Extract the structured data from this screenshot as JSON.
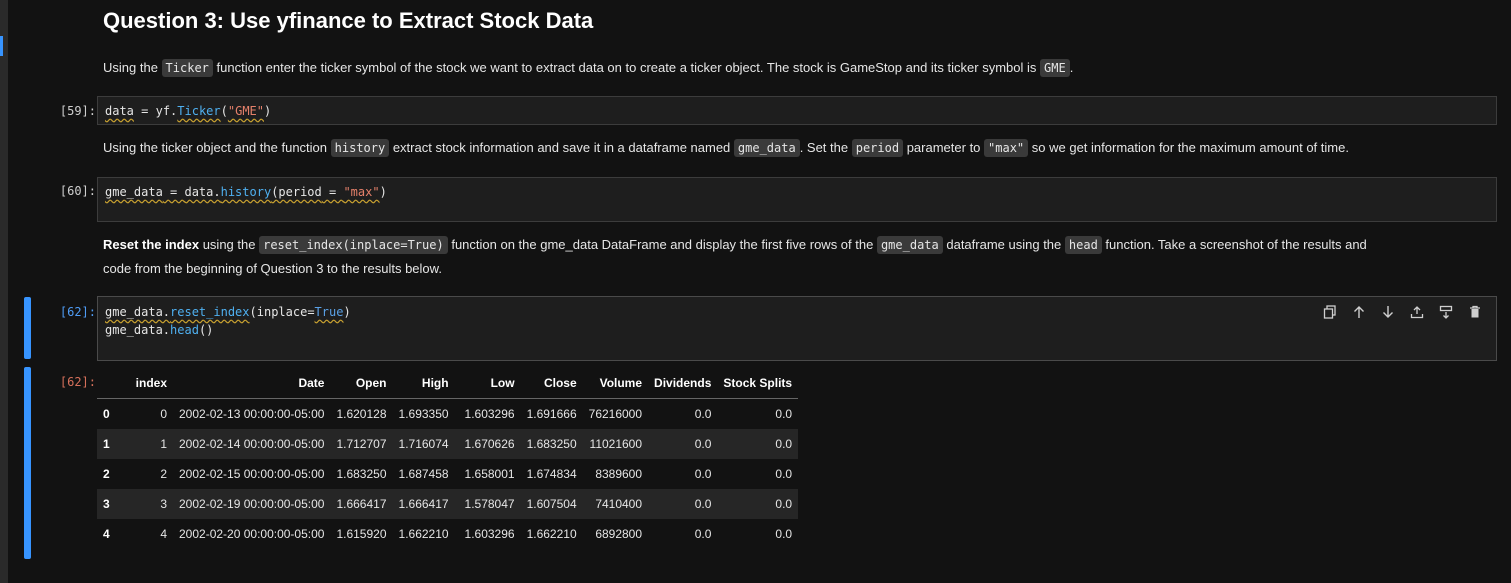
{
  "heading": "Question 3: Use yfinance to Extract Stock Data",
  "md1": {
    "t1": "Using the ",
    "c1": "Ticker",
    "t2": " function enter the ticker symbol of the stock we want to extract data on to create a ticker object. The stock is GameStop and its ticker symbol is ",
    "c2": "GME",
    "t3": "."
  },
  "cell59": {
    "prompt": "[59]:",
    "line1": {
      "a": "data",
      "b": " = ",
      "c": "yf.",
      "d": "Ticker",
      "e": "(",
      "f": "\"GME\"",
      "g": ")"
    }
  },
  "md2": {
    "t1": "Using the ticker object and the function ",
    "c1": "history",
    "t2": " extract stock information and save it in a dataframe named ",
    "c2": "gme_data",
    "t3": ". Set the ",
    "c3": "period",
    "t4": " parameter to ",
    "c4": "\"max\"",
    "t5": " so we get information for the maximum amount of time."
  },
  "cell60": {
    "prompt": "[60]:",
    "line1": {
      "a": "gme_data",
      "b": " = ",
      "c": "data.",
      "d": "history",
      "e": "(period",
      "f": " = ",
      "g": "\"max\"",
      "h": ")"
    }
  },
  "md3": {
    "b1": "Reset the index",
    "t1": " using the ",
    "c1": "reset_index(inplace=True)",
    "t2": " function on the gme_data DataFrame and display the first five rows of the ",
    "c2": "gme_data",
    "t3": " dataframe using the ",
    "c3": "head",
    "t4": " function. Take a screenshot of the results and",
    "t5": "code from the beginning of Question 3 to the results below."
  },
  "cell62": {
    "prompt": "[62]:",
    "line1": {
      "a": "gme_data.",
      "b": "reset_index",
      "c": "(inplace",
      "d": "=",
      "e": "True",
      "f": ")"
    },
    "line2": {
      "a": "gme_data.",
      "b": "head",
      "c": "()"
    },
    "toolbar": [
      "copy-icon",
      "move-up-icon",
      "move-down-icon",
      "insert-above-icon",
      "insert-below-icon",
      "delete-icon"
    ]
  },
  "output62": {
    "prompt": "[62]:",
    "columns": [
      "",
      "index",
      "Date",
      "Open",
      "High",
      "Low",
      "Close",
      "Volume",
      "Dividends",
      "Stock Splits"
    ],
    "rows": [
      [
        "0",
        "0",
        "2002-02-13 00:00:00-05:00",
        "1.620128",
        "1.693350",
        "1.603296",
        "1.691666",
        "76216000",
        "0.0",
        "0.0"
      ],
      [
        "1",
        "1",
        "2002-02-14 00:00:00-05:00",
        "1.712707",
        "1.716074",
        "1.670626",
        "1.683250",
        "11021600",
        "0.0",
        "0.0"
      ],
      [
        "2",
        "2",
        "2002-02-15 00:00:00-05:00",
        "1.683250",
        "1.687458",
        "1.658001",
        "1.674834",
        "8389600",
        "0.0",
        "0.0"
      ],
      [
        "3",
        "3",
        "2002-02-19 00:00:00-05:00",
        "1.666417",
        "1.666417",
        "1.578047",
        "1.607504",
        "7410400",
        "0.0",
        "0.0"
      ],
      [
        "4",
        "4",
        "2002-02-20 00:00:00-05:00",
        "1.615920",
        "1.662210",
        "1.603296",
        "1.662210",
        "6892800",
        "0.0",
        "0.0"
      ]
    ]
  },
  "colors": {
    "background": "#121212",
    "accent": "#3794ff",
    "cell_bg": "#1e1e1e",
    "string": "#e5806a",
    "function": "#4fb0f0"
  }
}
